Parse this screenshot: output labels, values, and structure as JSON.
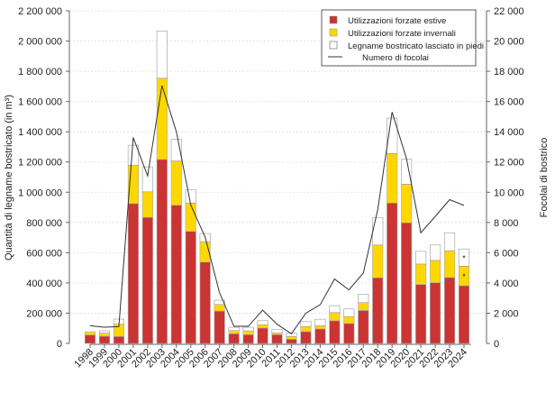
{
  "chart_data": {
    "type": "bar",
    "subtype": "stacked bar with line on secondary axis",
    "ylabel": "Quantità di legname bostricato (in m³)",
    "ylabel_right": "Focolai di bostrico",
    "ylim": [
      0,
      2200000
    ],
    "ylim_right": [
      0,
      22000
    ],
    "yticks": [
      "0",
      "200 000",
      "400 000",
      "600 000",
      "800 000",
      "1 000 000",
      "1 200 000",
      "1 400 000",
      "1 600 000",
      "1 800 000",
      "2 000 000",
      "2 200 000"
    ],
    "yticks_right": [
      "0",
      "2 000",
      "4 000",
      "6 000",
      "8 000",
      "10 000",
      "12 000",
      "14 000",
      "16 000",
      "18 000",
      "20 000",
      "22 000"
    ],
    "grid": "horizontal dotted",
    "legend_position": "top-right",
    "categories": [
      "1998",
      "1999",
      "2000",
      "2001",
      "2002",
      "2003",
      "2004",
      "2005",
      "2006",
      "2007",
      "2008",
      "2009",
      "2010",
      "2011",
      "2012",
      "2013",
      "2014",
      "2015",
      "2016",
      "2017",
      "2018",
      "2019",
      "2020",
      "2021",
      "2022",
      "2023",
      "2024"
    ],
    "series": [
      {
        "name": "Utilizzazioni forzate estive",
        "color": "#cc3333",
        "values": [
          56000,
          48000,
          46000,
          925000,
          834000,
          1217000,
          914000,
          741000,
          538000,
          214000,
          64000,
          58000,
          102000,
          58000,
          28000,
          78000,
          96000,
          150000,
          132000,
          218000,
          434000,
          929000,
          798000,
          390000,
          402000,
          436000,
          382000
        ]
      },
      {
        "name": "Utilizzazioni forzate invernali",
        "color": "#ffd700",
        "values": [
          21000,
          20000,
          81000,
          253000,
          169000,
          537000,
          293000,
          188000,
          135000,
          44000,
          21000,
          25000,
          22000,
          12000,
          18000,
          34000,
          22000,
          54000,
          46000,
          52000,
          217000,
          327000,
          255000,
          135000,
          147000,
          177000,
          129000
        ]
      },
      {
        "name": "Legname bostricato lasciato in piedi",
        "color": "#ffffff",
        "values": [
          0,
          15000,
          34000,
          133000,
          165000,
          313000,
          143000,
          86000,
          54000,
          28000,
          22000,
          24000,
          26000,
          24000,
          22000,
          32000,
          42000,
          46000,
          50000,
          56000,
          181000,
          234000,
          165000,
          84000,
          102000,
          119000,
          114000
        ]
      },
      {
        "name": "Numero di focolai",
        "type": "line",
        "axis": "right",
        "color": "#333333",
        "values": [
          1170,
          1070,
          1110,
          13620,
          11080,
          17060,
          14000,
          9160,
          7030,
          3360,
          1130,
          1130,
          2200,
          1270,
          640,
          2000,
          2560,
          4260,
          3540,
          4660,
          8840,
          15300,
          12220,
          7320,
          8400,
          9510,
          9130
        ]
      }
    ],
    "annotations": [
      {
        "category": "2024",
        "series": "Utilizzazioni forzate invernali",
        "text": "*"
      },
      {
        "category": "2024",
        "series": "Legname bostricato lasciato in piedi",
        "text": "*"
      }
    ]
  }
}
